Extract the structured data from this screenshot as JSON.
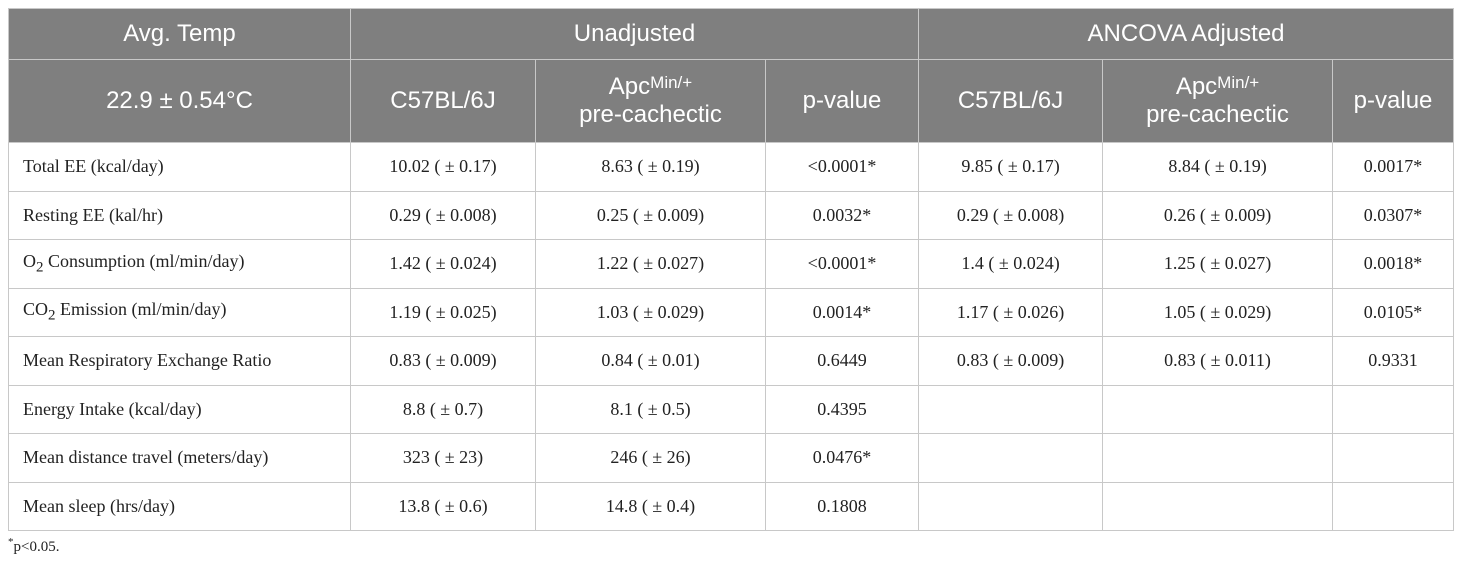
{
  "header": {
    "row1": [
      "Avg. Temp",
      "Unadjusted",
      "ANCOVA Adjusted"
    ],
    "temp": "22.9 ± 0.54°C",
    "columns": [
      {
        "text": "C57BL/6J"
      },
      {
        "text": "Apc",
        "sup": "Min/+",
        "line2": "pre-cachectic"
      },
      {
        "text": "p-value"
      },
      {
        "text": "C57BL/6J"
      },
      {
        "text": "Apc",
        "sup": "Min/+",
        "line2": "pre-cachectic"
      },
      {
        "text": "p-value"
      }
    ]
  },
  "table": {
    "rows": [
      {
        "label": {
          "text": "Total EE (kcal/day)"
        },
        "values": [
          "10.02 ( ± 0.17)",
          "8.63 ( ± 0.19)",
          "<0.0001*",
          "9.85 ( ± 0.17)",
          "8.84 ( ± 0.19)",
          "0.0017*"
        ]
      },
      {
        "label": {
          "text": "Resting EE (kal/hr)"
        },
        "values": [
          "0.29 ( ± 0.008)",
          "0.25 ( ± 0.009)",
          "0.0032*",
          "0.29 ( ± 0.008)",
          "0.26 ( ± 0.009)",
          "0.0307*"
        ]
      },
      {
        "label": {
          "text": "O",
          "sub": "2",
          "rest": " Consumption (ml/min/day)"
        },
        "values": [
          "1.42 ( ± 0.024)",
          "1.22 ( ± 0.027)",
          "<0.0001*",
          "1.4 ( ± 0.024)",
          "1.25 ( ± 0.027)",
          "0.0018*"
        ]
      },
      {
        "label": {
          "text": "CO",
          "sub": "2",
          "rest": " Emission (ml/min/day)"
        },
        "values": [
          "1.19 ( ± 0.025)",
          "1.03 ( ± 0.029)",
          "0.0014*",
          "1.17 ( ± 0.026)",
          "1.05 ( ± 0.029)",
          "0.0105*"
        ]
      },
      {
        "label": {
          "text": "Mean Respiratory Exchange Ratio"
        },
        "values": [
          "0.83 ( ± 0.009)",
          "0.84 ( ± 0.01)",
          "0.6449",
          "0.83 ( ± 0.009)",
          "0.83 ( ± 0.011)",
          "0.9331"
        ]
      },
      {
        "label": {
          "text": "Energy Intake (kcal/day)"
        },
        "values": [
          "8.8 ( ± 0.7)",
          "8.1 ( ± 0.5)",
          "0.4395"
        ]
      },
      {
        "label": {
          "text": "Mean distance travel (meters/day)"
        },
        "values": [
          "323 ( ± 23)",
          "246 ( ± 26)",
          "0.0476*"
        ]
      },
      {
        "label": {
          "text": "Mean sleep (hrs/day)"
        },
        "values": [
          "13.8 ( ± 0.6)",
          "14.8 ( ± 0.4)",
          "0.1808"
        ]
      }
    ]
  },
  "footnote": {
    "mark": "*",
    "text": "p<0.05."
  }
}
